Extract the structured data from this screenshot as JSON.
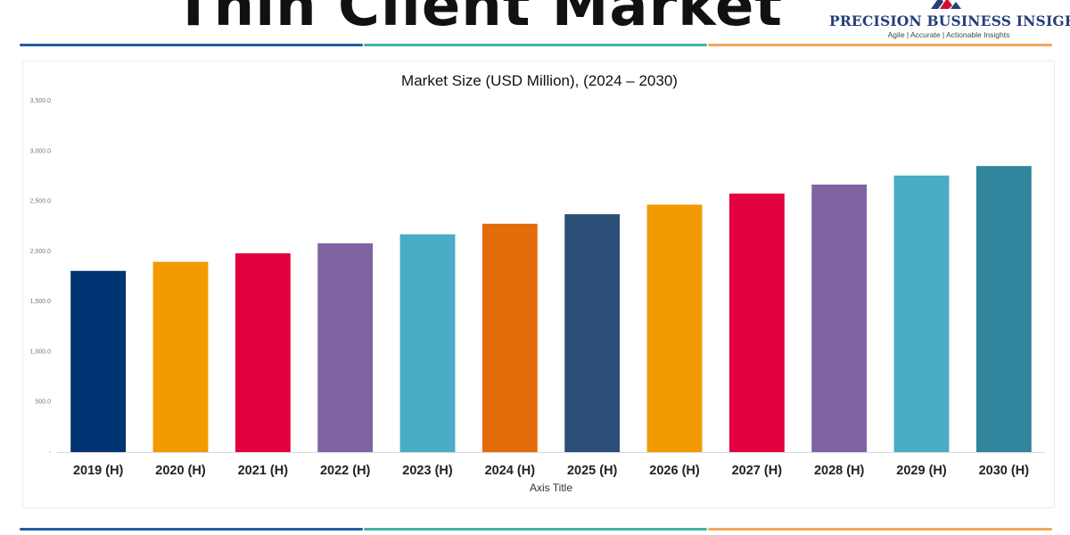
{
  "header": {
    "title": "Thin Client Market",
    "brand": {
      "name": "PRECISION BUSINESS INSIGHTS",
      "tagline": "Agile | Accurate | Actionable Insights"
    }
  },
  "colors": {
    "rule_blue": "#1f5fa0",
    "rule_green": "#3fb59a",
    "rule_orange": "#f2a65a",
    "brand_text": "#25407a"
  },
  "chart_data": {
    "type": "bar",
    "title": "Market Size (USD Million), (2024 – 2030)",
    "xlabel": "Axis Title",
    "ylabel": "",
    "ylim": [
      0,
      3500
    ],
    "y_ticks": [
      "-",
      "500.0",
      "1,000.0",
      "1,500.0",
      "2,000.0",
      "2,500.0",
      "3,000.0",
      "3,500.0"
    ],
    "grid": false,
    "legend": "none",
    "categories": [
      "2019 (H)",
      "2020 (H)",
      "2021 (H)",
      "2022 (H)",
      "2023 (H)",
      "2024 (H)",
      "2025 (H)",
      "2026 (H)",
      "2027 (H)",
      "2028 (H)",
      "2029 (H)",
      "2030 (H)"
    ],
    "values": [
      1805,
      1895,
      1980,
      2080,
      2170,
      2275,
      2370,
      2465,
      2575,
      2665,
      2755,
      2850
    ],
    "bar_colors": [
      "#003473",
      "#f29a00",
      "#e2003e",
      "#8064a2",
      "#4aacc6",
      "#e36c0a",
      "#2c4f77",
      "#f29a00",
      "#e2003e",
      "#8064a2",
      "#4aacc6",
      "#31859c"
    ]
  }
}
